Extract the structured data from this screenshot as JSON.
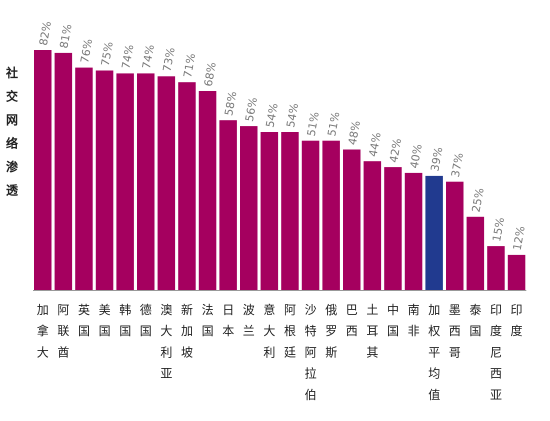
{
  "chart_data": {
    "type": "bar",
    "title": "",
    "xlabel": "",
    "ylabel": "社交网络渗透",
    "ylim": [
      0,
      85
    ],
    "grid": false,
    "legend": "none",
    "categories": [
      "加拿大",
      "阿联酋",
      "英国",
      "美国",
      "韩国",
      "德国",
      "澳大利亚",
      "新加坡",
      "法国",
      "日本",
      "波兰",
      "意大利",
      "阿根廷",
      "沙特阿拉伯",
      "俄罗斯",
      "巴西",
      "土耳其",
      "中国",
      "南非",
      "加权平均值",
      "墨西哥",
      "泰国",
      "印度尼西亚",
      "印度"
    ],
    "values": [
      82,
      81,
      76,
      75,
      74,
      74,
      73,
      71,
      68,
      58,
      56,
      54,
      54,
      51,
      51,
      48,
      44,
      42,
      40,
      39,
      37,
      25,
      15,
      12
    ],
    "value_labels": [
      "82%",
      "81%",
      "76%",
      "75%",
      "74%",
      "74%",
      "73%",
      "71%",
      "68%",
      "58%",
      "56%",
      "54%",
      "54%",
      "51%",
      "51%",
      "48%",
      "44%",
      "42%",
      "40%",
      "39%",
      "37%",
      "25%",
      "15%",
      "12%"
    ],
    "highlight_index": 19,
    "colors": {
      "bar": "#a5005f",
      "highlight": "#213a8f",
      "axis": "#999999",
      "value_label": "#7a7a7a",
      "text": "#222222"
    }
  }
}
